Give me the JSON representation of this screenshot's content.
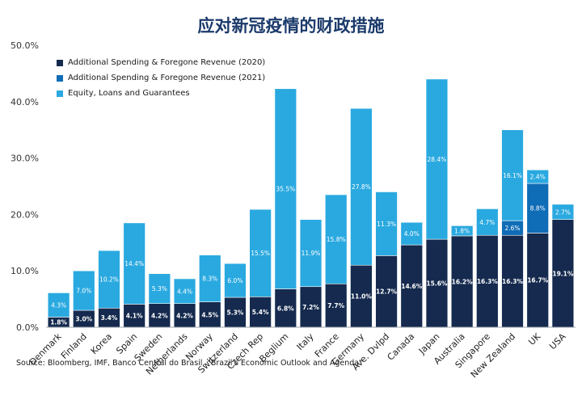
{
  "title": "应对新冠疫情的财政措施",
  "source": "Source: Bloomberg, IMF, Banco Central do Brasil, \"Brazil's Economic Outlook and Agenda\"",
  "chart_data": {
    "type": "bar",
    "stacked": true,
    "categories": [
      "Denmark",
      "Finland",
      "Korea",
      "Spain",
      "Sweden",
      "Netherlands",
      "Norway",
      "Switzerland",
      "Czech Rep",
      "Beglium",
      "Italy",
      "France",
      "Germany",
      "Ave. Dvlpd",
      "Canada",
      "Japan",
      "Australia",
      "Singapore",
      "New Zealand",
      "UK",
      "USA"
    ],
    "series": [
      {
        "name": "Additional Spending & Foregone Revenue (2020)",
        "color": "#152a4e",
        "values": [
          1.8,
          3.0,
          3.4,
          4.1,
          4.2,
          4.2,
          4.5,
          5.3,
          5.4,
          6.8,
          7.2,
          7.7,
          11.0,
          12.7,
          14.6,
          15.6,
          16.2,
          16.3,
          16.3,
          16.7,
          19.1
        ],
        "labels": [
          "1.8%",
          "3.0%",
          "3.4%",
          "4.1%",
          "4.2%",
          "4.2%",
          "4.5%",
          "5.3%",
          "5.4%",
          "6.8%",
          "7.2%",
          "7.7%",
          "11.0%",
          "12.7%",
          "14.6%",
          "15.6%",
          "16.2%",
          "16.3%",
          "16.3%",
          "16.7%",
          "19.1%"
        ]
      },
      {
        "name": "Additional Spending & Foregone Revenue (2021)",
        "color": "#0f6cb6",
        "values": [
          0,
          0,
          0,
          0,
          0,
          0,
          0,
          0,
          0,
          0,
          0,
          0,
          0,
          0,
          0,
          0,
          0,
          0,
          2.6,
          8.8,
          0
        ],
        "labels": [
          "",
          "",
          "",
          "",
          "",
          "",
          "",
          "",
          "",
          "",
          "",
          "",
          "",
          "",
          "",
          "",
          "",
          "",
          "2.6%",
          "8.8%",
          ""
        ]
      },
      {
        "name": "Equity, Loans and Guarantees",
        "color": "#2aa9e0",
        "values": [
          4.3,
          7.0,
          10.2,
          14.4,
          5.3,
          4.4,
          8.3,
          6.0,
          15.5,
          35.5,
          11.9,
          15.8,
          27.8,
          11.3,
          4.0,
          28.4,
          1.8,
          4.7,
          16.1,
          2.4,
          2.7
        ],
        "labels": [
          "4.3%",
          "7.0%",
          "10.2%",
          "14.4%",
          "5.3%",
          "4.4%",
          "8.3%",
          "6.0%",
          "15.5%",
          "35.5%",
          "11.9%",
          "15.8%",
          "27.8%",
          "11.3%",
          "4.0%",
          "28.4%",
          "1.8%",
          "4.7%",
          "16.1%",
          "2.4%",
          "2.7%"
        ]
      }
    ],
    "ylim": [
      0,
      50
    ],
    "yticks": [
      "0.0%",
      "10.0%",
      "20.0%",
      "30.0%",
      "40.0%",
      "50.0%"
    ],
    "legend_position": "top-left",
    "grid": false
  }
}
